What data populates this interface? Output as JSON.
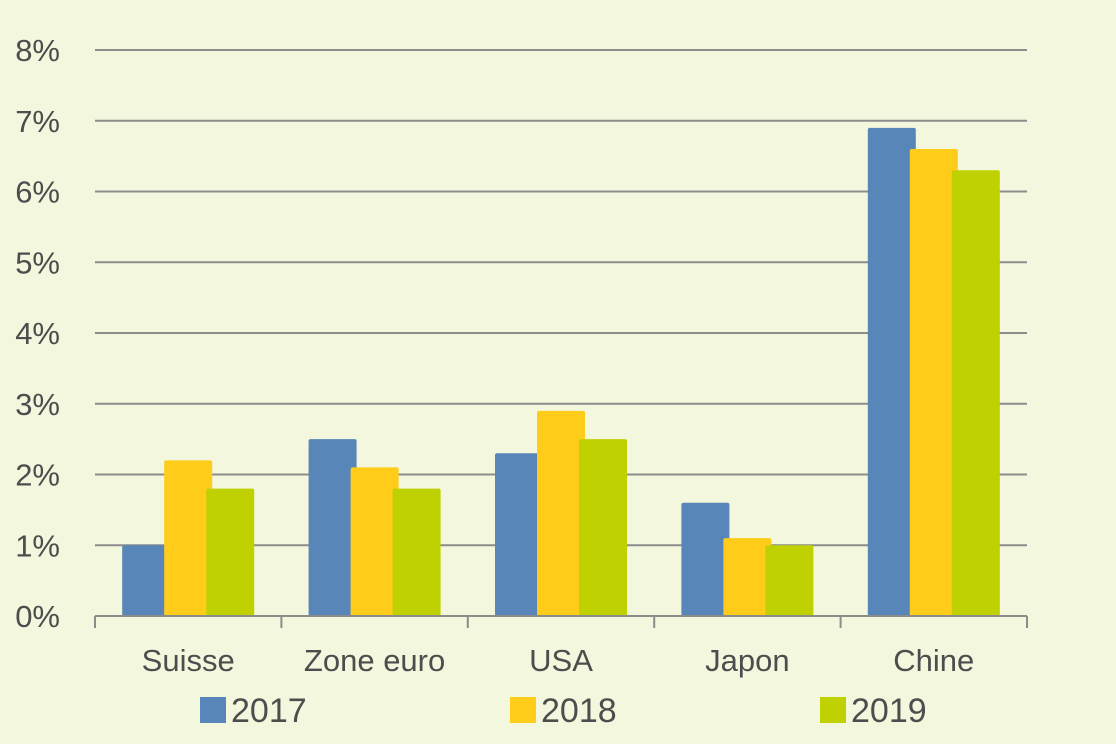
{
  "chart_data": {
    "type": "bar",
    "title": "",
    "xlabel": "",
    "ylabel": "",
    "categories": [
      "Suisse",
      "Zone euro",
      "USA",
      "Japon",
      "Chine"
    ],
    "series": [
      {
        "name": "2017",
        "values": [
          1.0,
          2.5,
          2.3,
          1.6,
          6.9
        ],
        "color": "#5886b8"
      },
      {
        "name": "2018",
        "values": [
          2.2,
          2.1,
          2.9,
          1.1,
          6.6
        ],
        "color": "#ffcc1a"
      },
      {
        "name": "2019",
        "values": [
          1.8,
          1.8,
          2.5,
          1.0,
          6.3
        ],
        "color": "#bfd100"
      }
    ],
    "ylim": [
      0,
      8
    ],
    "yticks": [
      "0%",
      "1%",
      "2%",
      "3%",
      "4%",
      "5%",
      "6%",
      "7%",
      "8%"
    ],
    "grid": true,
    "legend_position": "bottom",
    "colors": {
      "background": "#f3f7dd",
      "gridline": "#8c8c8c",
      "text": "#4d4d4d"
    }
  }
}
